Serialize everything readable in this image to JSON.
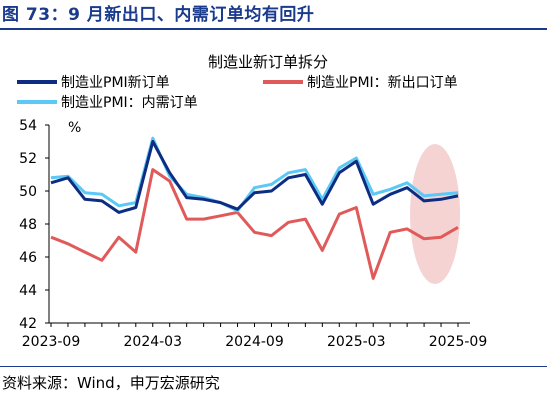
{
  "figure_title": "图 73：9 月新出口、内需订单均有回升",
  "source": "资料来源：Wind，申万宏源研究",
  "colors": {
    "dark_blue": "#0d2d82",
    "red": "#e05a5a",
    "light_blue": "#5bc8f5",
    "highlight": "#f6d3d3",
    "header": "#1a3a8c"
  },
  "chart_data": {
    "type": "line",
    "title": "制造业新订单拆分",
    "ylabel": "%",
    "ylim": [
      42,
      54
    ],
    "yticks": [
      42,
      44,
      46,
      48,
      50,
      52,
      54
    ],
    "x_tick_labels": [
      "2023-09",
      "2024-03",
      "2024-09",
      "2025-03",
      "2025-09"
    ],
    "x": [
      "2023-09",
      "2023-10",
      "2023-11",
      "2023-12",
      "2024-01",
      "2024-02",
      "2024-03",
      "2024-04",
      "2024-05",
      "2024-06",
      "2024-07",
      "2024-08",
      "2024-09",
      "2024-10",
      "2024-11",
      "2024-12",
      "2025-01",
      "2025-02",
      "2025-03",
      "2025-04",
      "2025-05",
      "2025-06",
      "2025-07",
      "2025-08",
      "2025-09"
    ],
    "series": [
      {
        "name": "制造业PMI新订单",
        "color": "#0d2d82",
        "values": [
          50.5,
          50.8,
          49.5,
          49.4,
          48.7,
          49.0,
          53.0,
          51.1,
          49.6,
          49.5,
          49.3,
          48.9,
          49.9,
          50.0,
          50.8,
          51.0,
          49.2,
          51.1,
          51.8,
          49.2,
          49.8,
          50.2,
          49.4,
          49.5,
          49.7
        ]
      },
      {
        "name": "制造业PMI：新出口订单",
        "color": "#e05a5a",
        "values": [
          47.2,
          46.8,
          46.3,
          45.8,
          47.2,
          46.3,
          51.3,
          50.6,
          48.3,
          48.3,
          48.5,
          48.7,
          47.5,
          47.3,
          48.1,
          48.3,
          46.4,
          48.6,
          49.0,
          44.7,
          47.5,
          47.7,
          47.1,
          47.2,
          47.8
        ]
      },
      {
        "name": "制造业PMI：内需订单",
        "color": "#5bc8f5",
        "values": [
          50.8,
          50.9,
          49.9,
          49.8,
          49.1,
          49.3,
          53.2,
          50.9,
          49.8,
          49.6,
          49.3,
          48.8,
          50.2,
          50.4,
          51.1,
          51.3,
          49.5,
          51.4,
          52.0,
          49.8,
          50.1,
          50.5,
          49.7,
          49.8,
          49.9
        ]
      }
    ],
    "highlight_region": {
      "from": "2025-07",
      "to": "2025-09",
      "shape": "ellipse"
    },
    "legend_position": "top"
  }
}
